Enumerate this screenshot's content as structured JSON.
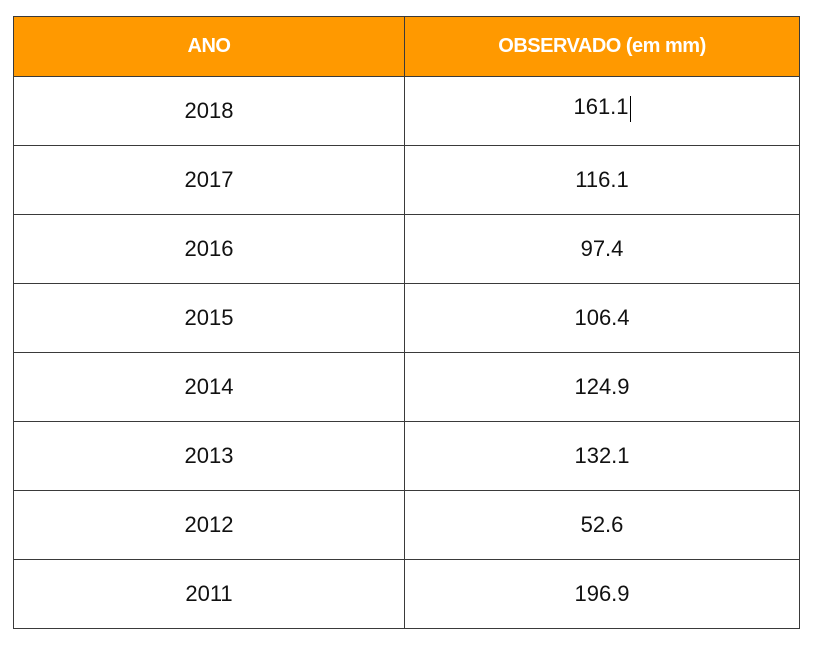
{
  "table": {
    "headers": {
      "year": "ANO",
      "observed": "OBSERVADO (em mm)"
    },
    "rows": [
      {
        "year": "2018",
        "observed": "161.1"
      },
      {
        "year": "2017",
        "observed": "116.1"
      },
      {
        "year": "2016",
        "observed": "97.4"
      },
      {
        "year": "2015",
        "observed": "106.4"
      },
      {
        "year": "2014",
        "observed": "124.9"
      },
      {
        "year": "2013",
        "observed": "132.1"
      },
      {
        "year": "2012",
        "observed": "52.6"
      },
      {
        "year": "2011",
        "observed": "196.9"
      }
    ]
  },
  "colors": {
    "header_bg": "#ff9900",
    "header_text": "#ffffff",
    "border": "#3a3a3a"
  }
}
